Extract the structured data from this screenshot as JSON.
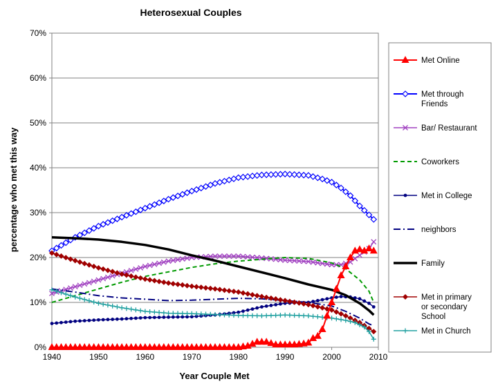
{
  "chart_data": {
    "type": "line",
    "title": "Heterosexual Couples",
    "xlabel": "Year Couple Met",
    "ylabel": "percentage who met this way",
    "xlim": [
      1940,
      2010
    ],
    "ylim": [
      0,
      70
    ],
    "x_ticks": [
      "1940",
      "1950",
      "1960",
      "1970",
      "1980",
      "1990",
      "2000",
      "2010"
    ],
    "y_ticks": [
      "0%",
      "10%",
      "20%",
      "30%",
      "40%",
      "50%",
      "60%",
      "70%"
    ],
    "grid": "horizontal",
    "legend": "right",
    "series": [
      {
        "name": "Met Online",
        "color": "#ff0000",
        "marker": "triangle",
        "style": "solid",
        "width": 2,
        "points": [
          [
            1940,
            0
          ],
          [
            1950,
            0
          ],
          [
            1960,
            0
          ],
          [
            1970,
            0
          ],
          [
            1980,
            0
          ],
          [
            1982,
            0.3
          ],
          [
            1984,
            1.2
          ],
          [
            1986,
            1.2
          ],
          [
            1988,
            0.6
          ],
          [
            1990,
            0.6
          ],
          [
            1992,
            0.6
          ],
          [
            1994,
            0.8
          ],
          [
            1995,
            1
          ],
          [
            1996,
            2
          ],
          [
            1997,
            2.5
          ],
          [
            1998,
            4
          ],
          [
            1999,
            7
          ],
          [
            2000,
            10
          ],
          [
            2001,
            13
          ],
          [
            2002,
            16
          ],
          [
            2003,
            18
          ],
          [
            2004,
            20
          ],
          [
            2005,
            21.5
          ],
          [
            2006,
            21.8
          ],
          [
            2007,
            21.5
          ],
          [
            2008,
            22
          ],
          [
            2009,
            21.5
          ]
        ]
      },
      {
        "name": "Met through Friends",
        "color": "#0000ff",
        "marker": "diamond-open",
        "style": "solid",
        "width": 2,
        "points": [
          [
            1940,
            21.5
          ],
          [
            1945,
            24.5
          ],
          [
            1950,
            27
          ],
          [
            1955,
            29
          ],
          [
            1960,
            31
          ],
          [
            1965,
            33
          ],
          [
            1970,
            34.8
          ],
          [
            1975,
            36.5
          ],
          [
            1980,
            37.8
          ],
          [
            1985,
            38.4
          ],
          [
            1990,
            38.6
          ],
          [
            1995,
            38.3
          ],
          [
            1998,
            37.5
          ],
          [
            2000,
            36.8
          ],
          [
            2002,
            35.5
          ],
          [
            2004,
            33.8
          ],
          [
            2006,
            31.5
          ],
          [
            2008,
            29.5
          ],
          [
            2009,
            28.5
          ]
        ]
      },
      {
        "name": "Bar/ Restaurant",
        "color": "#a040c0",
        "marker": "x",
        "style": "solid",
        "width": 1.5,
        "points": [
          [
            1940,
            12
          ],
          [
            1945,
            13.5
          ],
          [
            1950,
            15
          ],
          [
            1955,
            16.5
          ],
          [
            1960,
            18
          ],
          [
            1965,
            19.2
          ],
          [
            1970,
            20
          ],
          [
            1975,
            20.3
          ],
          [
            1980,
            20.3
          ],
          [
            1985,
            19.9
          ],
          [
            1990,
            19.4
          ],
          [
            1995,
            19.1
          ],
          [
            2000,
            18.4
          ],
          [
            2002,
            18.4
          ],
          [
            2004,
            19
          ],
          [
            2006,
            20.5
          ],
          [
            2008,
            22
          ],
          [
            2009,
            23.5
          ]
        ]
      },
      {
        "name": "Coworkers",
        "color": "#009a00",
        "marker": "none",
        "style": "dashed",
        "width": 2,
        "points": [
          [
            1940,
            10
          ],
          [
            1945,
            11.5
          ],
          [
            1950,
            13
          ],
          [
            1955,
            14.5
          ],
          [
            1960,
            15.8
          ],
          [
            1965,
            16.8
          ],
          [
            1970,
            17.8
          ],
          [
            1975,
            18.6
          ],
          [
            1980,
            19.2
          ],
          [
            1985,
            19.6
          ],
          [
            1990,
            20
          ],
          [
            1995,
            19.8
          ],
          [
            2000,
            18.8
          ],
          [
            2003,
            17.5
          ],
          [
            2006,
            15
          ],
          [
            2008,
            12.5
          ],
          [
            2009,
            10
          ]
        ]
      },
      {
        "name": "Met in College",
        "color": "#000080",
        "marker": "dot",
        "style": "solid",
        "width": 1.5,
        "points": [
          [
            1940,
            5.3
          ],
          [
            1945,
            5.8
          ],
          [
            1950,
            6.1
          ],
          [
            1955,
            6.3
          ],
          [
            1960,
            6.6
          ],
          [
            1965,
            6.7
          ],
          [
            1970,
            6.8
          ],
          [
            1975,
            7.2
          ],
          [
            1980,
            7.8
          ],
          [
            1985,
            9
          ],
          [
            1990,
            9.8
          ],
          [
            1995,
            10
          ],
          [
            2000,
            11
          ],
          [
            2002,
            11.3
          ],
          [
            2004,
            11.2
          ],
          [
            2006,
            10.8
          ],
          [
            2008,
            9.8
          ],
          [
            2009,
            9
          ]
        ]
      },
      {
        "name": "neighbors",
        "color": "#000080",
        "marker": "none",
        "style": "dashdot",
        "width": 2,
        "points": [
          [
            1940,
            13
          ],
          [
            1945,
            12.3
          ],
          [
            1950,
            11.5
          ],
          [
            1955,
            11
          ],
          [
            1960,
            10.7
          ],
          [
            1965,
            10.4
          ],
          [
            1970,
            10.5
          ],
          [
            1975,
            10.7
          ],
          [
            1980,
            10.9
          ],
          [
            1985,
            10.8
          ],
          [
            1990,
            10.4
          ],
          [
            1995,
            10
          ],
          [
            2000,
            9.2
          ],
          [
            2003,
            8
          ],
          [
            2006,
            6.5
          ],
          [
            2008,
            5.2
          ],
          [
            2009,
            4.8
          ]
        ]
      },
      {
        "name": "Family",
        "color": "#000000",
        "marker": "none",
        "style": "solid",
        "width": 3.5,
        "points": [
          [
            1940,
            24.5
          ],
          [
            1945,
            24.3
          ],
          [
            1950,
            24
          ],
          [
            1955,
            23.5
          ],
          [
            1960,
            22.8
          ],
          [
            1965,
            21.8
          ],
          [
            1970,
            20.5
          ],
          [
            1975,
            19.3
          ],
          [
            1980,
            18
          ],
          [
            1985,
            16.7
          ],
          [
            1990,
            15.4
          ],
          [
            1995,
            14
          ],
          [
            2000,
            12.8
          ],
          [
            2003,
            11.6
          ],
          [
            2006,
            9.8
          ],
          [
            2008,
            8.2
          ],
          [
            2009,
            7.2
          ]
        ]
      },
      {
        "name": "Met in primary or secondary School",
        "color": "#a00000",
        "marker": "diamond",
        "style": "solid",
        "width": 1.5,
        "points": [
          [
            1940,
            21
          ],
          [
            1945,
            19.3
          ],
          [
            1950,
            17.7
          ],
          [
            1955,
            16.3
          ],
          [
            1960,
            15.2
          ],
          [
            1965,
            14.3
          ],
          [
            1970,
            13.6
          ],
          [
            1975,
            13
          ],
          [
            1980,
            12.3
          ],
          [
            1985,
            11.3
          ],
          [
            1990,
            10.4
          ],
          [
            1995,
            9.5
          ],
          [
            2000,
            8.3
          ],
          [
            2003,
            7
          ],
          [
            2006,
            5.5
          ],
          [
            2008,
            4.2
          ],
          [
            2009,
            3.5
          ]
        ]
      },
      {
        "name": "Met in Church",
        "color": "#20a0a0",
        "marker": "plus",
        "style": "solid",
        "width": 1.5,
        "points": [
          [
            1940,
            12.8
          ],
          [
            1945,
            11.2
          ],
          [
            1950,
            9.8
          ],
          [
            1955,
            8.8
          ],
          [
            1960,
            8
          ],
          [
            1965,
            7.6
          ],
          [
            1970,
            7.5
          ],
          [
            1975,
            7.3
          ],
          [
            1980,
            7.1
          ],
          [
            1985,
            7
          ],
          [
            1990,
            7.2
          ],
          [
            1995,
            7
          ],
          [
            2000,
            6.5
          ],
          [
            2003,
            6
          ],
          [
            2005,
            5.5
          ],
          [
            2007,
            4.5
          ],
          [
            2008,
            3.5
          ],
          [
            2009,
            1.8
          ]
        ]
      }
    ]
  }
}
